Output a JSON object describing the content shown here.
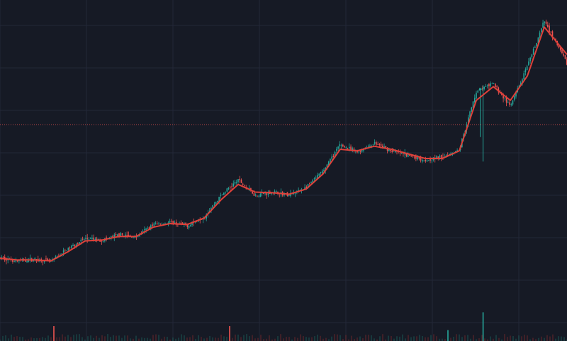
{
  "colors": {
    "background": "#161a25",
    "grid": "#232838",
    "candle_up": "#26a69a",
    "candle_down": "#ef5350",
    "moving_average": "#e0413a",
    "price_line": "#ef5350",
    "volume_up": "#1f6f66",
    "volume_down": "#8a2e2e"
  },
  "chart_data": {
    "type": "line",
    "title": "",
    "xlabel": "",
    "ylabel": "",
    "ylim": [
      0,
      100
    ],
    "grid": true,
    "price_line_value": 61,
    "price_series_x": [
      0,
      3,
      6,
      9,
      12,
      15,
      18,
      21,
      24,
      27,
      30,
      33,
      36,
      39,
      42,
      45,
      48,
      51,
      54,
      57,
      60,
      63,
      66,
      69,
      72,
      75,
      78,
      81,
      84,
      87,
      90,
      93,
      96,
      100
    ],
    "price_series_y": [
      17.5,
      16.5,
      17.0,
      16.3,
      20.5,
      23.8,
      23.2,
      25.0,
      24.3,
      28.5,
      29.0,
      28.0,
      31.0,
      38.0,
      43.0,
      38.0,
      39.0,
      38.0,
      40.5,
      46.0,
      54.5,
      52.0,
      55.0,
      52.5,
      51.0,
      49.5,
      50.5,
      53.0,
      72.0,
      74.5,
      67.0,
      80.0,
      95.0,
      81.0
    ],
    "moving_average_x": [
      0,
      3,
      6,
      9,
      12,
      15,
      18,
      21,
      24,
      27,
      30,
      33,
      36,
      39,
      42,
      45,
      48,
      51,
      54,
      57,
      60,
      63,
      66,
      69,
      72,
      75,
      78,
      81,
      84,
      87,
      90,
      93,
      96,
      100
    ],
    "moving_average_y": [
      17.3,
      16.8,
      16.8,
      16.5,
      19.5,
      23.0,
      23.3,
      24.5,
      24.5,
      27.5,
      28.7,
      28.4,
      30.5,
      36.5,
      41.5,
      39.0,
      38.8,
      38.3,
      40.0,
      45.0,
      53.0,
      52.5,
      54.0,
      53.0,
      51.5,
      50.0,
      50.0,
      52.5,
      69.0,
      73.5,
      69.0,
      77.0,
      93.0,
      84.0
    ],
    "volume_spikes_x": [
      9.5,
      40.5,
      79.0,
      85.2
    ],
    "volume_spikes_y": [
      30,
      30,
      22,
      58
    ]
  }
}
